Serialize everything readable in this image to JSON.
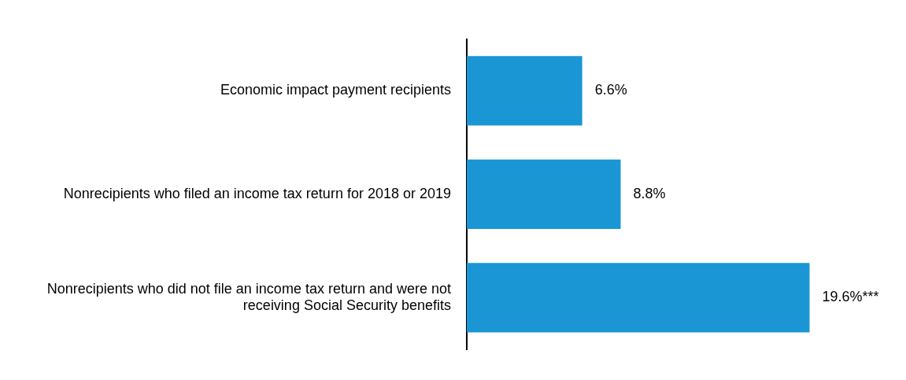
{
  "chart_data": {
    "type": "bar",
    "orientation": "horizontal",
    "categories": [
      "Economic impact payment recipients",
      "Nonrecipients who filed an income tax return for 2018 or 2019",
      "Nonrecipients who did not file an income tax return and were not receiving Social Security benefits"
    ],
    "values": [
      6.6,
      8.8,
      19.6
    ],
    "value_labels": [
      "6.6%",
      "8.8%",
      "19.6%***"
    ],
    "color": "#1a96d4",
    "grid": false,
    "legend": false
  }
}
